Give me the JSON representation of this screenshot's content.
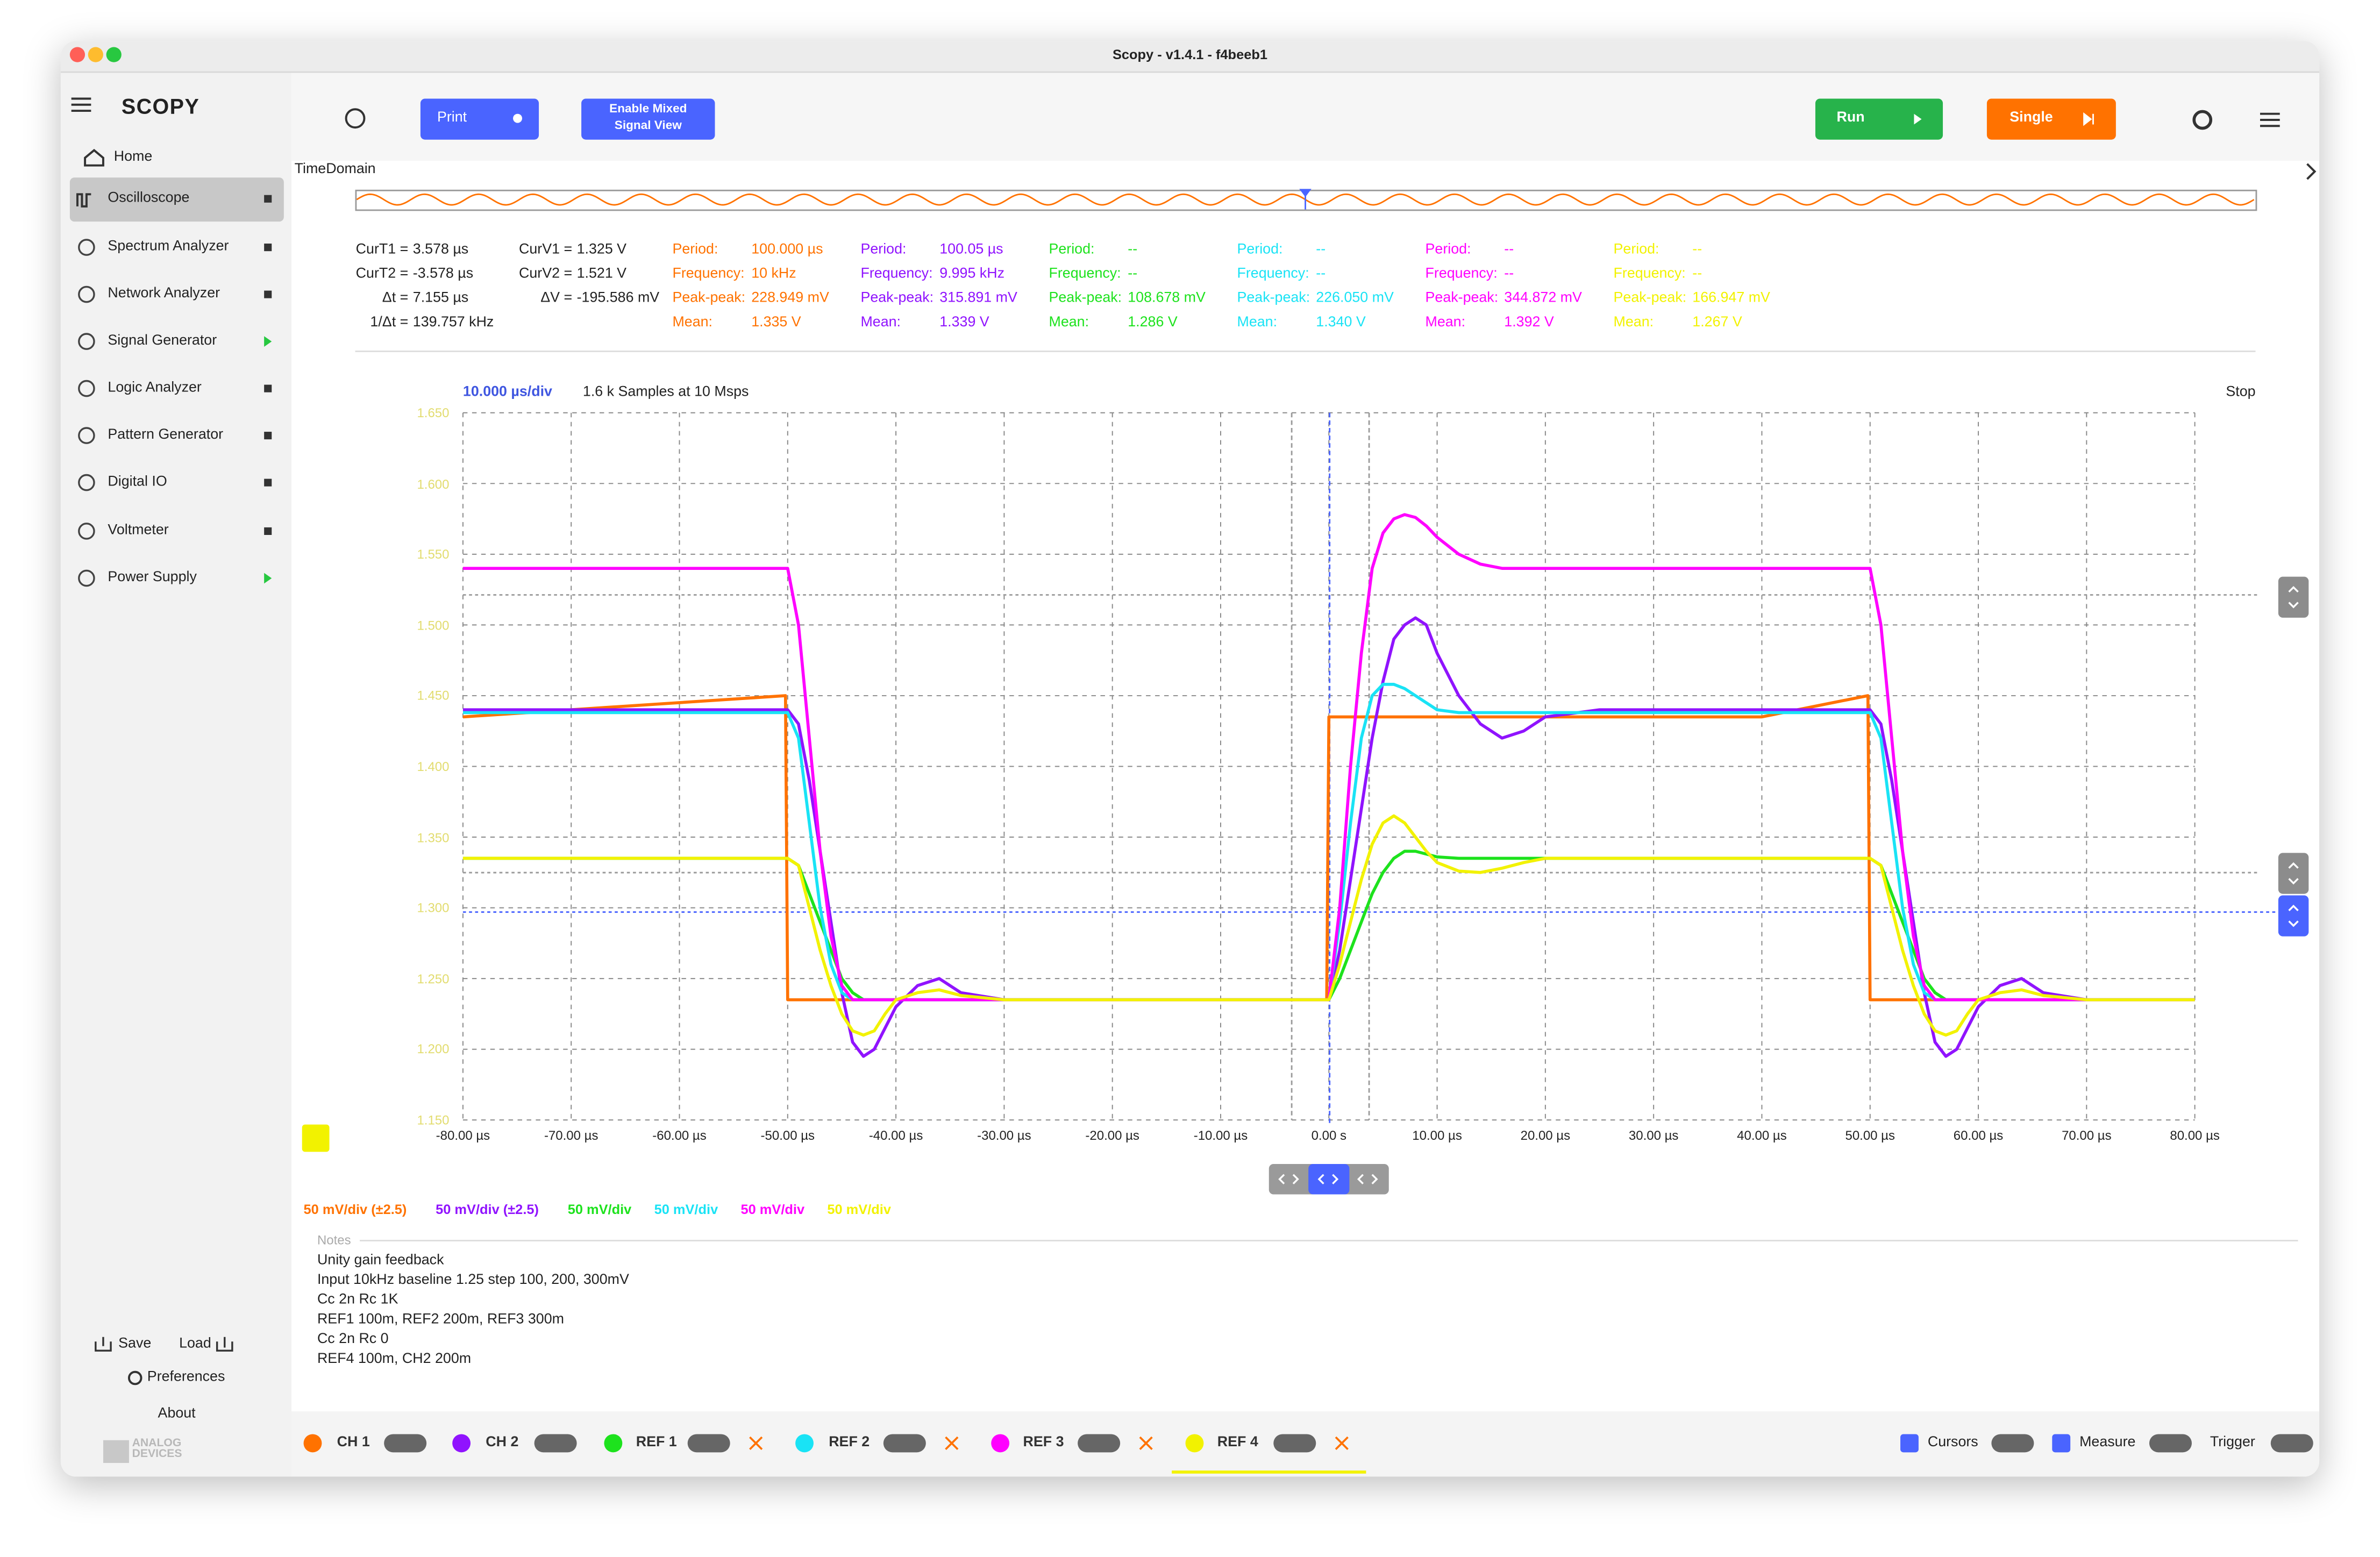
{
  "window": {
    "title": "Scopy - v1.4.1 - f4beeb1"
  },
  "sidebar": {
    "logo": "SCOPY",
    "items": [
      "Home",
      "Oscilloscope",
      "Spectrum Analyzer",
      "Network Analyzer",
      "Signal Generator",
      "Logic Analyzer",
      "Pattern Generator",
      "Digital IO",
      "Voltmeter",
      "Power Supply"
    ],
    "save": "Save",
    "load": "Load",
    "preferences": "Preferences",
    "about": "About",
    "brand": [
      "ANALOG",
      "DEVICES"
    ]
  },
  "toolbar": {
    "print": "Print",
    "mixed": [
      "Enable Mixed",
      "Signal View"
    ],
    "run": "Run",
    "single": "Single"
  },
  "time_domain": "TimeDomain",
  "cursors": [
    [
      "CurT1 =",
      "3.578 µs"
    ],
    [
      "CurT2 =",
      "-3.578 µs"
    ],
    [
      "Δt =",
      "7.155 µs"
    ],
    [
      "1/Δt =",
      "139.757 kHz"
    ],
    [
      "CurV1 =",
      "1.325 V"
    ],
    [
      "CurV2 =",
      "1.521 V"
    ],
    [
      "ΔV =",
      "-195.586 mV"
    ]
  ],
  "measurements": [
    {
      "rows": [
        [
          "Period:",
          "100.000 µs"
        ],
        [
          "Frequency:",
          "10 kHz"
        ],
        [
          "Peak-peak:",
          "228.949 mV"
        ],
        [
          "Mean:",
          "1.335 V"
        ]
      ]
    },
    {
      "rows": [
        [
          "Period:",
          "100.05 µs"
        ],
        [
          "Frequency:",
          "9.995 kHz"
        ],
        [
          "Peak-peak:",
          "315.891 mV"
        ],
        [
          "Mean:",
          "1.339 V"
        ]
      ]
    },
    {
      "rows": [
        [
          "Period:",
          "--"
        ],
        [
          "Frequency:",
          "--"
        ],
        [
          "Peak-peak:",
          "108.678 mV"
        ],
        [
          "Mean:",
          "1.286 V"
        ]
      ]
    },
    {
      "rows": [
        [
          "Period:",
          "--"
        ],
        [
          "Frequency:",
          "--"
        ],
        [
          "Peak-peak:",
          "226.050 mV"
        ],
        [
          "Mean:",
          "1.340 V"
        ]
      ]
    },
    {
      "rows": [
        [
          "Period:",
          "--"
        ],
        [
          "Frequency:",
          "--"
        ],
        [
          "Peak-peak:",
          "344.872 mV"
        ],
        [
          "Mean:",
          "1.392 V"
        ]
      ]
    },
    {
      "rows": [
        [
          "Period:",
          "--"
        ],
        [
          "Frequency:",
          "--"
        ],
        [
          "Peak-peak:",
          "166.947 mV"
        ],
        [
          "Mean:",
          "1.267 V"
        ]
      ]
    }
  ],
  "plot": {
    "timebase": "10.000 µs/div",
    "samples": "1.6 k Samples at 10 Msps",
    "status": "Stop"
  },
  "channel_scales": [
    "50 mV/div (±2.5)",
    "50 mV/div (±2.5)",
    "50 mV/div",
    "50 mV/div",
    "50 mV/div",
    "50 mV/div"
  ],
  "notes": {
    "title": "Notes",
    "lines": [
      "Unity gain feedback",
      "Input 10kHz baseline 1.25 step 100, 200, 300mV",
      "Cc 2n Rc 1K",
      "REF1 100m, REF2 200m, REF3 300m",
      "Cc 2n Rc 0",
      "REF4 100m, CH2 200m"
    ]
  },
  "bottom": {
    "cursors": "Cursors",
    "measure": "Measure",
    "trigger": "Trigger"
  },
  "chart_data": {
    "type": "line",
    "grid": true,
    "x": [
      -80,
      -50.2,
      -50,
      -49,
      -48,
      -47,
      -46,
      -45,
      -44,
      -43,
      -42,
      -41,
      -40,
      -38,
      -36,
      -34,
      -30,
      -20,
      -0.2,
      0,
      1,
      2,
      3,
      4,
      5,
      6,
      7,
      8,
      9,
      10,
      12,
      14,
      16,
      18,
      20,
      25,
      30,
      40,
      49.8,
      50,
      51,
      52,
      53,
      54,
      55,
      56,
      57,
      58,
      59,
      60,
      62,
      64,
      66,
      70,
      80
    ],
    "xlim": [
      -80,
      80
    ],
    "xticks": [
      {
        "value": -80,
        "label": "-80.00 µs"
      },
      {
        "value": -70,
        "label": "-70.00 µs"
      },
      {
        "value": -60,
        "label": "-60.00 µs"
      },
      {
        "value": -50,
        "label": "-50.00 µs"
      },
      {
        "value": -40,
        "label": "-40.00 µs"
      },
      {
        "value": -30,
        "label": "-30.00 µs"
      },
      {
        "value": -20,
        "label": "-20.00 µs"
      },
      {
        "value": -10,
        "label": "-10.00 µs"
      },
      {
        "value": 0,
        "label": "0.00 s"
      },
      {
        "value": 10,
        "label": "10.00 µs"
      },
      {
        "value": 20,
        "label": "20.00 µs"
      },
      {
        "value": 30,
        "label": "30.00 µs"
      },
      {
        "value": 40,
        "label": "40.00 µs"
      },
      {
        "value": 50,
        "label": "50.00 µs"
      },
      {
        "value": 60,
        "label": "60.00 µs"
      },
      {
        "value": 70,
        "label": "70.00 µs"
      },
      {
        "value": 80,
        "label": "80.00 µs"
      }
    ],
    "ylim": [
      1.15,
      1.65
    ],
    "yticks": [
      {
        "value": 1.65,
        "label": "1.650"
      },
      {
        "value": 1.6,
        "label": "1.600"
      },
      {
        "value": 1.55,
        "label": "1.550"
      },
      {
        "value": 1.5,
        "label": "1.500"
      },
      {
        "value": 1.45,
        "label": "1.450"
      },
      {
        "value": 1.4,
        "label": "1.400"
      },
      {
        "value": 1.35,
        "label": "1.350"
      },
      {
        "value": 1.3,
        "label": "1.300"
      },
      {
        "value": 1.25,
        "label": "1.250"
      },
      {
        "value": 1.2,
        "label": "1.200"
      },
      {
        "value": 1.15,
        "label": "1.150"
      }
    ],
    "series": [
      {
        "name": "CH 1",
        "color": "#ff7200",
        "values": [
          1.435,
          1.45,
          1.235,
          1.235,
          1.235,
          1.235,
          1.235,
          1.235,
          1.235,
          1.235,
          1.235,
          1.235,
          1.235,
          1.235,
          1.235,
          1.235,
          1.235,
          1.235,
          1.235,
          1.435,
          1.435,
          1.435,
          1.435,
          1.435,
          1.435,
          1.435,
          1.435,
          1.435,
          1.435,
          1.435,
          1.435,
          1.435,
          1.435,
          1.435,
          1.435,
          1.435,
          1.435,
          1.435,
          1.45,
          1.235,
          1.235,
          1.235,
          1.235,
          1.235,
          1.235,
          1.235,
          1.235,
          1.235,
          1.235,
          1.235,
          1.235,
          1.235,
          1.235,
          1.235,
          1.235
        ]
      },
      {
        "name": "CH 2",
        "color": "#9013fe",
        "values": [
          1.44,
          1.44,
          1.44,
          1.43,
          1.39,
          1.34,
          1.29,
          1.24,
          1.205,
          1.195,
          1.2,
          1.215,
          1.23,
          1.245,
          1.25,
          1.24,
          1.235,
          1.235,
          1.235,
          1.235,
          1.27,
          1.32,
          1.37,
          1.42,
          1.46,
          1.49,
          1.5,
          1.505,
          1.5,
          1.48,
          1.45,
          1.43,
          1.42,
          1.425,
          1.435,
          1.44,
          1.44,
          1.44,
          1.44,
          1.44,
          1.43,
          1.39,
          1.34,
          1.29,
          1.24,
          1.205,
          1.195,
          1.2,
          1.215,
          1.23,
          1.245,
          1.25,
          1.24,
          1.235,
          1.235
        ]
      },
      {
        "name": "REF 1",
        "color": "#1de21d",
        "values": [
          1.335,
          1.335,
          1.335,
          1.33,
          1.31,
          1.29,
          1.27,
          1.25,
          1.24,
          1.235,
          1.235,
          1.235,
          1.235,
          1.235,
          1.235,
          1.235,
          1.235,
          1.235,
          1.235,
          1.235,
          1.25,
          1.27,
          1.29,
          1.31,
          1.325,
          1.335,
          1.34,
          1.34,
          1.338,
          1.336,
          1.335,
          1.335,
          1.335,
          1.335,
          1.335,
          1.335,
          1.335,
          1.335,
          1.335,
          1.335,
          1.33,
          1.31,
          1.29,
          1.27,
          1.25,
          1.24,
          1.235,
          1.235,
          1.235,
          1.235,
          1.235,
          1.235,
          1.235,
          1.235,
          1.235
        ]
      },
      {
        "name": "REF 2",
        "color": "#19e3f5",
        "values": [
          1.438,
          1.438,
          1.438,
          1.42,
          1.36,
          1.3,
          1.26,
          1.24,
          1.235,
          1.235,
          1.235,
          1.235,
          1.235,
          1.235,
          1.235,
          1.235,
          1.235,
          1.235,
          1.235,
          1.235,
          1.29,
          1.36,
          1.42,
          1.45,
          1.458,
          1.458,
          1.455,
          1.45,
          1.445,
          1.44,
          1.438,
          1.438,
          1.438,
          1.438,
          1.438,
          1.438,
          1.438,
          1.438,
          1.438,
          1.438,
          1.42,
          1.36,
          1.3,
          1.26,
          1.24,
          1.235,
          1.235,
          1.235,
          1.235,
          1.235,
          1.235,
          1.235,
          1.235,
          1.235,
          1.235
        ]
      },
      {
        "name": "REF 3",
        "color": "#ff00ff",
        "values": [
          1.54,
          1.54,
          1.54,
          1.5,
          1.42,
          1.34,
          1.28,
          1.245,
          1.235,
          1.235,
          1.235,
          1.235,
          1.235,
          1.235,
          1.235,
          1.235,
          1.235,
          1.235,
          1.235,
          1.235,
          1.3,
          1.4,
          1.48,
          1.54,
          1.565,
          1.575,
          1.578,
          1.576,
          1.57,
          1.562,
          1.55,
          1.543,
          1.54,
          1.54,
          1.54,
          1.54,
          1.54,
          1.54,
          1.54,
          1.54,
          1.5,
          1.42,
          1.34,
          1.28,
          1.245,
          1.235,
          1.235,
          1.235,
          1.235,
          1.235,
          1.235,
          1.235,
          1.235,
          1.235,
          1.235
        ]
      },
      {
        "name": "REF 4",
        "color": "#f2f200",
        "values": [
          1.335,
          1.335,
          1.335,
          1.33,
          1.3,
          1.27,
          1.245,
          1.225,
          1.213,
          1.21,
          1.213,
          1.225,
          1.235,
          1.24,
          1.242,
          1.238,
          1.235,
          1.235,
          1.235,
          1.235,
          1.26,
          1.29,
          1.32,
          1.345,
          1.36,
          1.365,
          1.36,
          1.35,
          1.34,
          1.332,
          1.326,
          1.325,
          1.328,
          1.332,
          1.335,
          1.335,
          1.335,
          1.335,
          1.335,
          1.335,
          1.33,
          1.3,
          1.27,
          1.245,
          1.225,
          1.213,
          1.21,
          1.213,
          1.225,
          1.235,
          1.24,
          1.242,
          1.238,
          1.235,
          1.235
        ]
      }
    ]
  }
}
